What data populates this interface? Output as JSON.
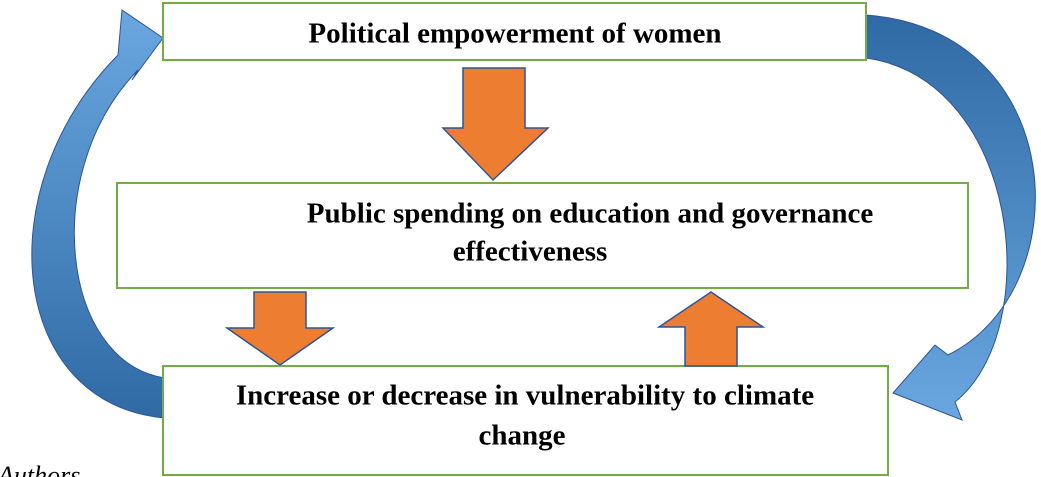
{
  "nodes": [
    {
      "lines": [
        "Political empowerment of women"
      ]
    },
    {
      "lines": [
        "Public spending on education and governance",
        "effectiveness"
      ]
    },
    {
      "lines": [
        "Increase or decrease in vulnerability to climate",
        "change"
      ]
    }
  ],
  "source": "Authors"
}
